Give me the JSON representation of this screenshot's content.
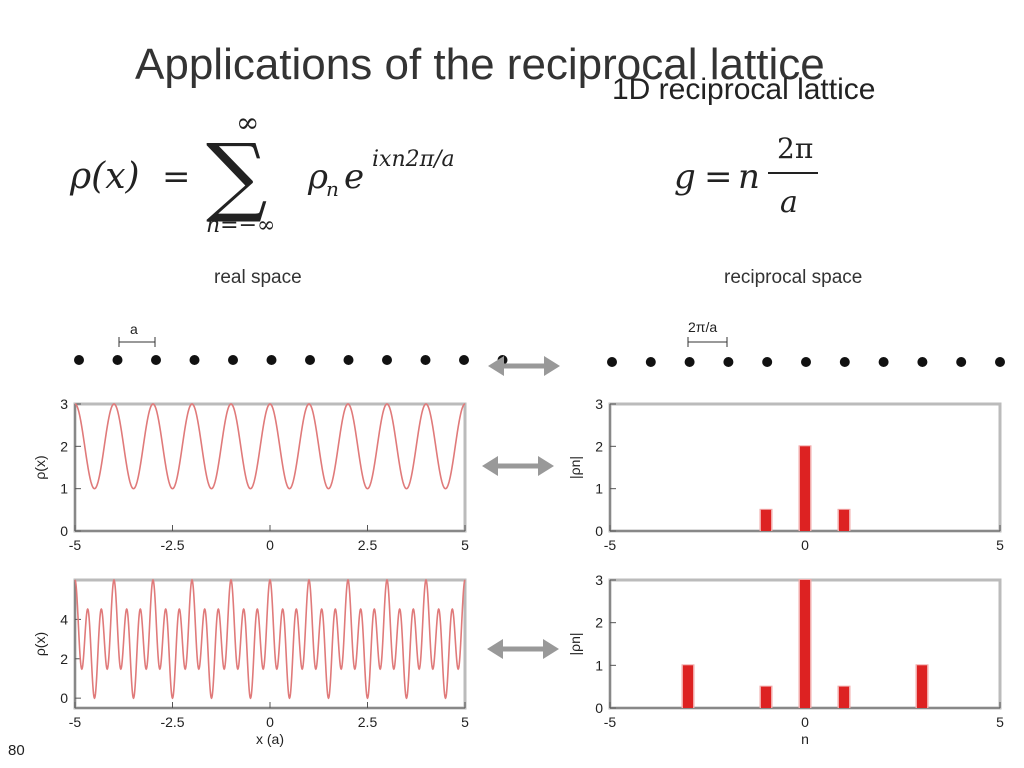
{
  "slide": {
    "title": "Applications of the reciprocal lattice",
    "subtitle": "1D reciprocal lattice",
    "page_number": "80"
  },
  "equations": {
    "density": {
      "lhs": "ρ(x)",
      "equals": "=",
      "sum_upper": "∞",
      "sum_lower": "n=−∞",
      "coef": "ρ",
      "coef_sub": "n",
      "exp_base": "e",
      "exponent": "ixn2π/a"
    },
    "reciprocal": {
      "lhs": "g",
      "equals": "=",
      "n": "n",
      "numerator": "2π",
      "denominator": "a"
    }
  },
  "labels": {
    "real_space": "real space",
    "reciprocal_space": "reciprocal space",
    "real_spacing": "a",
    "reciprocal_spacing": "2π/a"
  },
  "colors": {
    "curve": "#e07a7a",
    "bar": "#dd2222",
    "bar_edge": "#f2a9a9",
    "arrow": "#999999",
    "frame": "#777777"
  },
  "chart_data": [
    {
      "type": "line",
      "ylabel": "ρ(x)",
      "xlabel": "",
      "xlim": [
        -5,
        5
      ],
      "ylim": [
        0,
        3
      ],
      "xticks": [
        "-5",
        "-2.5",
        "0",
        "2.5",
        "5"
      ],
      "yticks": [
        "0",
        "1",
        "2",
        "3"
      ],
      "function": "2 + cos(2πx)"
    },
    {
      "type": "bar",
      "ylabel": "|ρn|",
      "xlabel": "",
      "xlim": [
        -5,
        5
      ],
      "ylim": [
        0,
        3
      ],
      "xticks": [
        "-5",
        "0",
        "5"
      ],
      "yticks": [
        "0",
        "1",
        "2",
        "3"
      ],
      "x": [
        -1,
        0,
        1
      ],
      "values": [
        0.5,
        2,
        0.5
      ]
    },
    {
      "type": "line",
      "ylabel": "ρ(x)",
      "xlabel": "x (a)",
      "xlim": [
        -5,
        5
      ],
      "ylim": [
        -0.5,
        6
      ],
      "xticks": [
        "-5",
        "-2.5",
        "0",
        "2.5",
        "5"
      ],
      "yticks": [
        "0",
        "2",
        "4"
      ],
      "function": "3 + cos(2πx) + 2cos(6πx)"
    },
    {
      "type": "bar",
      "ylabel": "|ρn|",
      "xlabel": "n",
      "xlim": [
        -5,
        5
      ],
      "ylim": [
        0,
        3
      ],
      "xticks": [
        "-5",
        "0",
        "5"
      ],
      "yticks": [
        "0",
        "1",
        "2",
        "3"
      ],
      "x": [
        -3,
        -1,
        0,
        1,
        3
      ],
      "values": [
        1,
        0.5,
        3,
        0.5,
        1
      ]
    }
  ]
}
